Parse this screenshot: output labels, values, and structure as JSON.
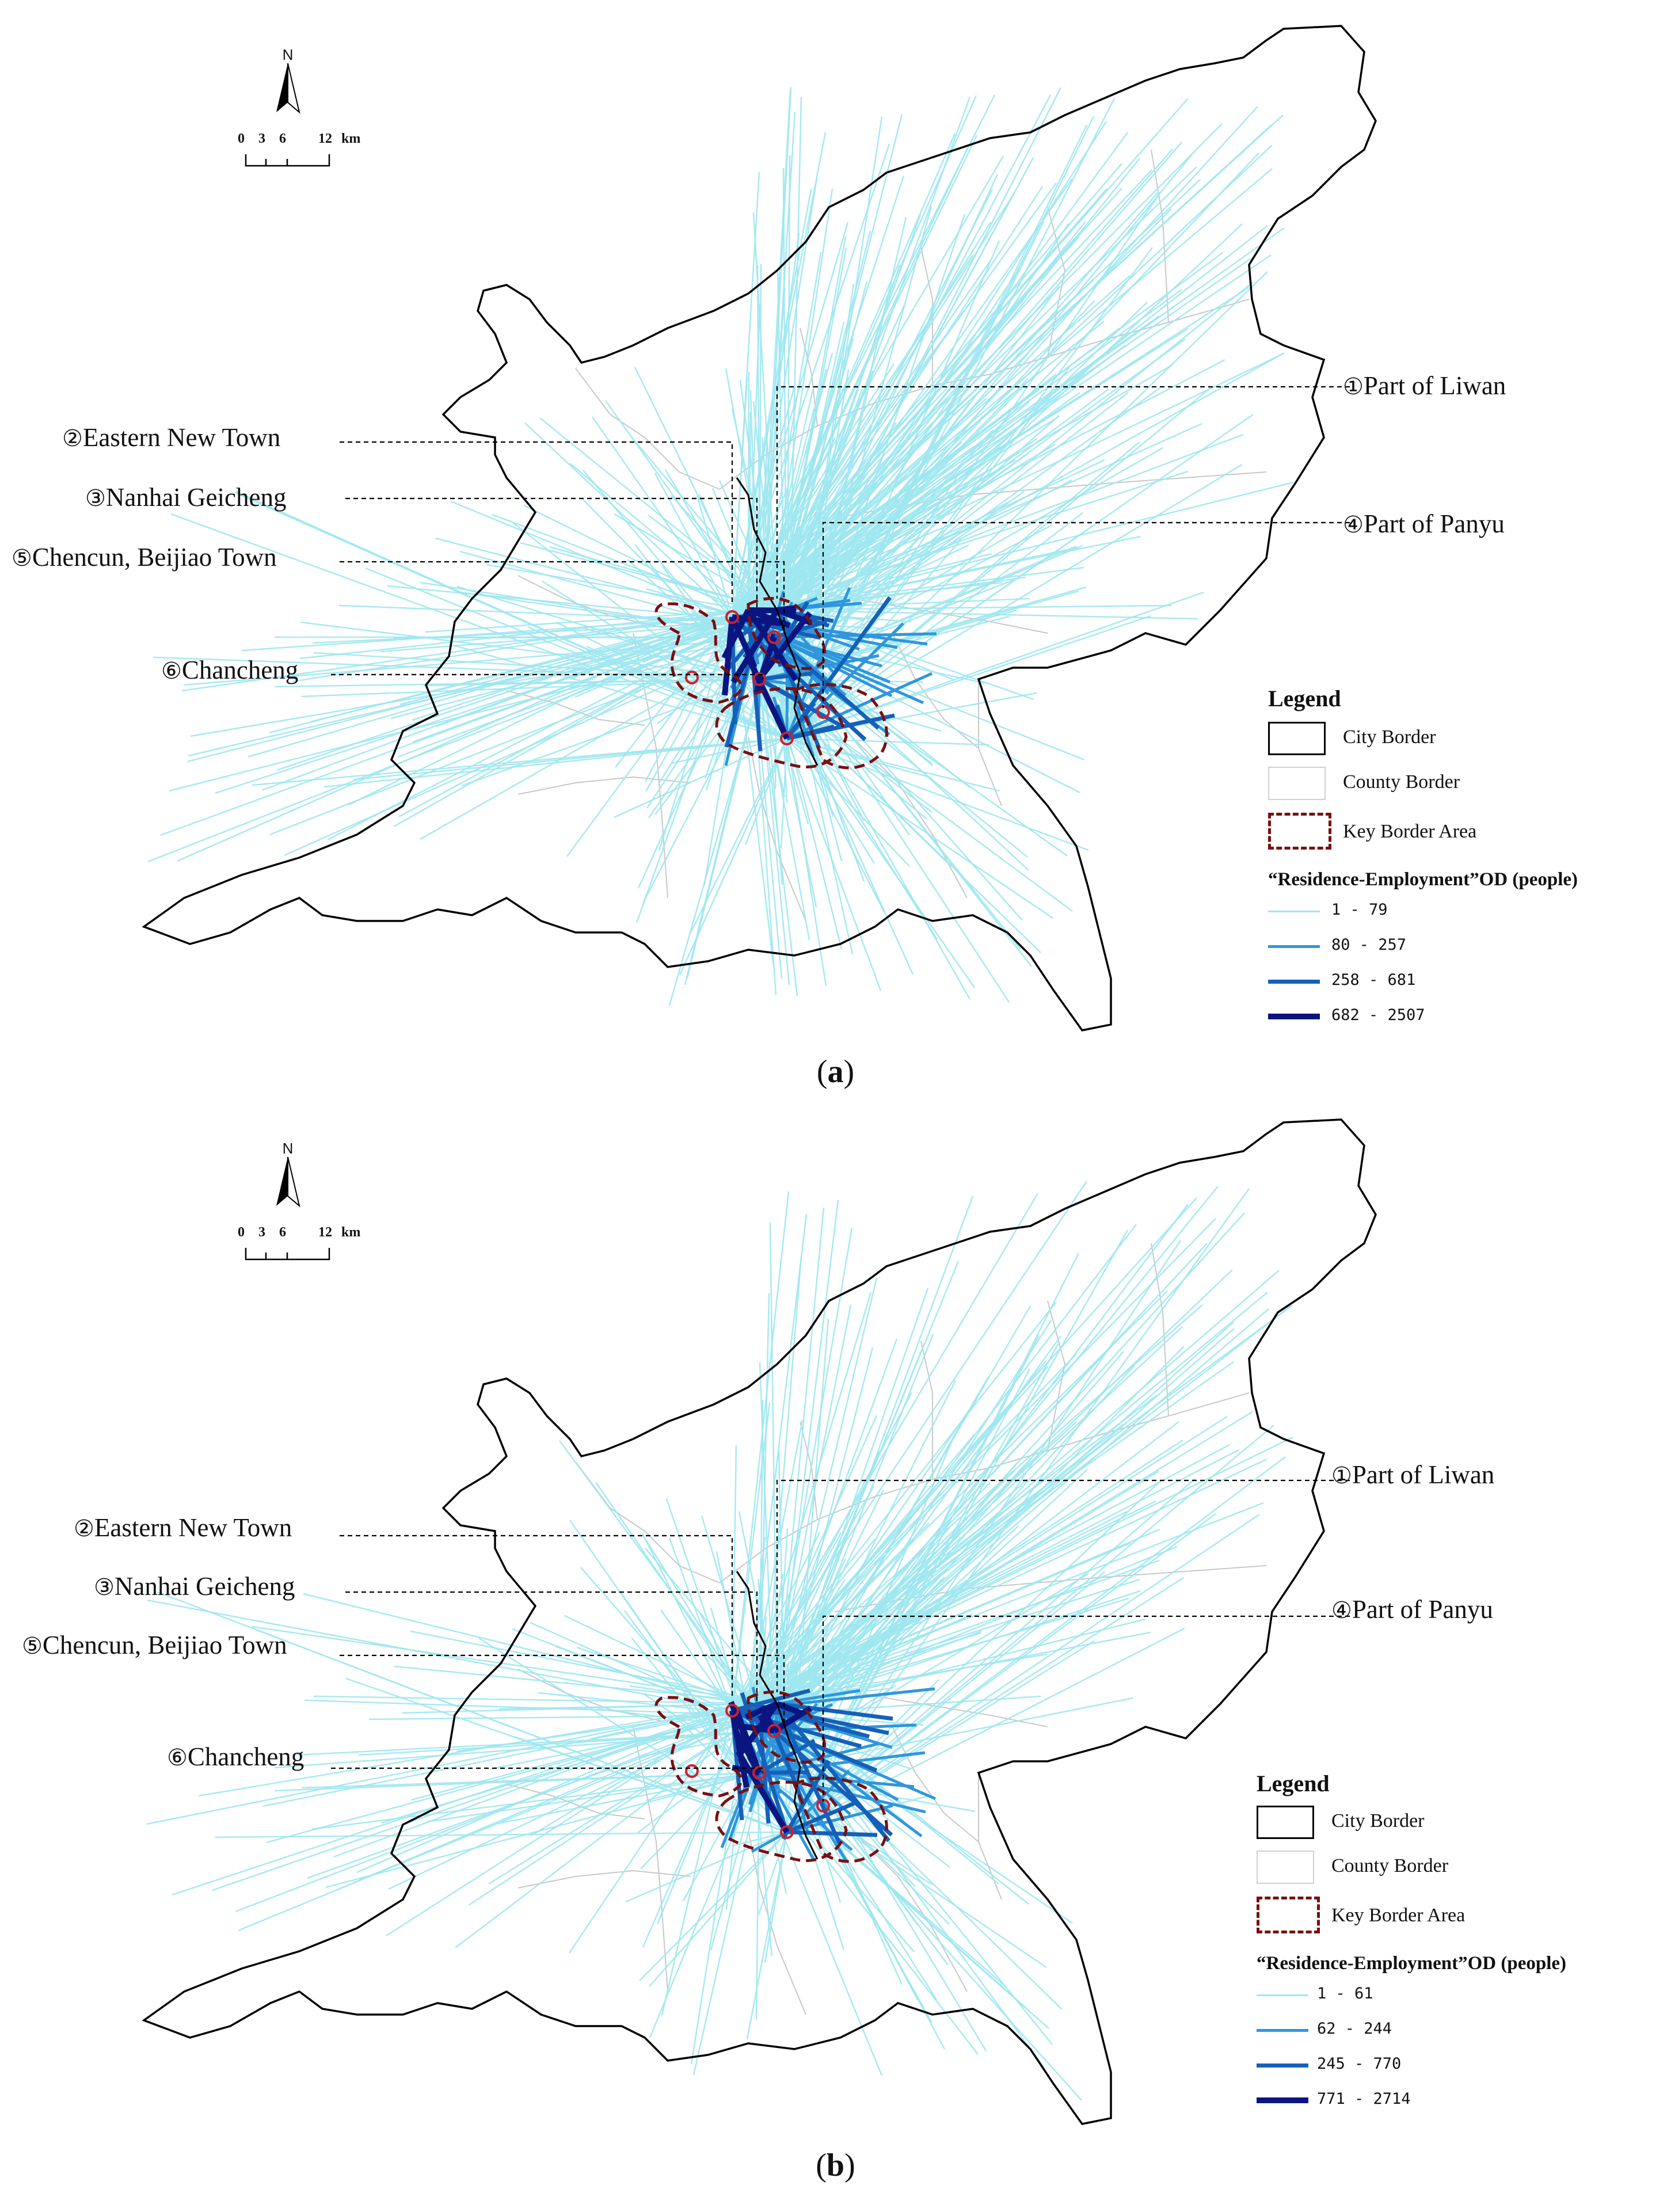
{
  "panels": [
    {
      "id": "a",
      "caption_open": "(",
      "caption_letter": "a",
      "caption_close": ")",
      "north_label": "N",
      "scale": {
        "ticks": [
          "0",
          "3",
          "6",
          "12"
        ],
        "unit": "km"
      },
      "callouts": [
        {
          "num": "①",
          "text": "Part of Liwan"
        },
        {
          "num": "②",
          "text": "Eastern New Town"
        },
        {
          "num": "③",
          "text": "Nanhai Geicheng"
        },
        {
          "num": "④",
          "text": "Part of Panyu"
        },
        {
          "num": "⑤",
          "text": "Chencun, Beijiao Town"
        },
        {
          "num": "⑥",
          "text": "Chancheng"
        }
      ],
      "legend": {
        "title": "Legend",
        "city_border": "City Border",
        "county_border": "County Border",
        "key_border_area": "Key Border Area",
        "od_title": "“Residence-Employment”OD (people)",
        "classes": [
          "1 - 79",
          "80 - 257",
          "258 - 681",
          "682 - 2507"
        ]
      }
    },
    {
      "id": "b",
      "caption_open": "(",
      "caption_letter": "b",
      "caption_close": ")",
      "north_label": "N",
      "scale": {
        "ticks": [
          "0",
          "3",
          "6",
          "12"
        ],
        "unit": "km"
      },
      "callouts": [
        {
          "num": "①",
          "text": "Part of Liwan"
        },
        {
          "num": "②",
          "text": "Eastern New Town"
        },
        {
          "num": "③",
          "text": "Nanhai Geicheng"
        },
        {
          "num": "④",
          "text": "Part of Panyu"
        },
        {
          "num": "⑤",
          "text": "Chencun, Beijiao Town"
        },
        {
          "num": "⑥",
          "text": "Chancheng"
        }
      ],
      "legend": {
        "title": "Legend",
        "city_border": "City Border",
        "county_border": "County Border",
        "key_border_area": "Key Border Area",
        "od_title": "“Residence-Employment”OD (people)",
        "classes": [
          "1 - 61",
          "62 - 244",
          "245 - 770",
          "771 - 2714"
        ]
      }
    }
  ],
  "colors": {
    "od_class_1": "#9fe7ef",
    "od_class_2": "#2f96dc",
    "od_class_3": "#1560b8",
    "od_class_4": "#0b1580",
    "city_border": "#000000",
    "county_border": "#c8c8c8",
    "key_border_area": "#7a0f0f"
  }
}
